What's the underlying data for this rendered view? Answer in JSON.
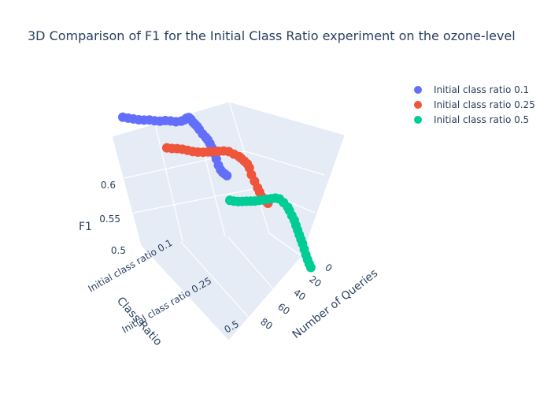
{
  "chart_data": {
    "type": "scatter3d",
    "title": "3D Comparison of F1 for the Initial Class Ratio experiment on the ozone-level",
    "axes": {
      "x": {
        "title": "Number of Queries",
        "ticks": [
          "0",
          "20",
          "40",
          "60",
          "80"
        ]
      },
      "y": {
        "title": "Class Ratio",
        "ticks": [
          "Initial class ratio 0.1",
          "Initial class ratio 0.25",
          "0.5"
        ]
      },
      "z": {
        "title": "F1",
        "ticks": [
          "0.5",
          "0.55",
          "0.6"
        ]
      }
    },
    "legend": {
      "position": "top-right"
    },
    "series": [
      {
        "name": "Initial class ratio 0.1",
        "color": "#636efa",
        "x": [
          0,
          5,
          10,
          15,
          20,
          25,
          30,
          35,
          40,
          45,
          50,
          55,
          58,
          60,
          62,
          64,
          66,
          68,
          70,
          72,
          75,
          78,
          80,
          82,
          84,
          86,
          88,
          90,
          92,
          94,
          96,
          98
        ],
        "f1": [
          0.582,
          0.584,
          0.586,
          0.588,
          0.591,
          0.595,
          0.597,
          0.6,
          0.605,
          0.608,
          0.61,
          0.615,
          0.62,
          0.625,
          0.628,
          0.626,
          0.621,
          0.618,
          0.615,
          0.61,
          0.603,
          0.598,
          0.594,
          0.588,
          0.58,
          0.57,
          0.56,
          0.548,
          0.54,
          0.536,
          0.534,
          0.532
        ]
      },
      {
        "name": "Initial class ratio 0.25",
        "color": "#ef553b",
        "x": [
          0,
          5,
          10,
          15,
          20,
          25,
          30,
          35,
          40,
          45,
          50,
          55,
          60,
          65,
          70,
          72,
          75,
          78,
          80,
          82,
          85,
          88,
          90,
          92,
          94,
          96,
          98
        ],
        "f1": [
          0.574,
          0.576,
          0.579,
          0.581,
          0.582,
          0.583,
          0.585,
          0.588,
          0.592,
          0.596,
          0.6,
          0.604,
          0.606,
          0.604,
          0.602,
          0.6,
          0.596,
          0.592,
          0.585,
          0.572,
          0.56,
          0.548,
          0.54,
          0.532,
          0.528,
          0.525,
          0.522
        ]
      },
      {
        "name": "Initial class ratio 0.5",
        "color": "#00cc96",
        "x": [
          0,
          5,
          10,
          15,
          20,
          25,
          30,
          35,
          40,
          45,
          50,
          55,
          60,
          65,
          70,
          72,
          75,
          78,
          80,
          82,
          84,
          86,
          88,
          90,
          92,
          94,
          96,
          98
        ],
        "f1": [
          0.533,
          0.536,
          0.54,
          0.545,
          0.55,
          0.555,
          0.56,
          0.566,
          0.572,
          0.578,
          0.584,
          0.59,
          0.593,
          0.59,
          0.585,
          0.58,
          0.572,
          0.565,
          0.556,
          0.548,
          0.54,
          0.532,
          0.525,
          0.515,
          0.505,
          0.497,
          0.49,
          0.484
        ]
      }
    ]
  }
}
